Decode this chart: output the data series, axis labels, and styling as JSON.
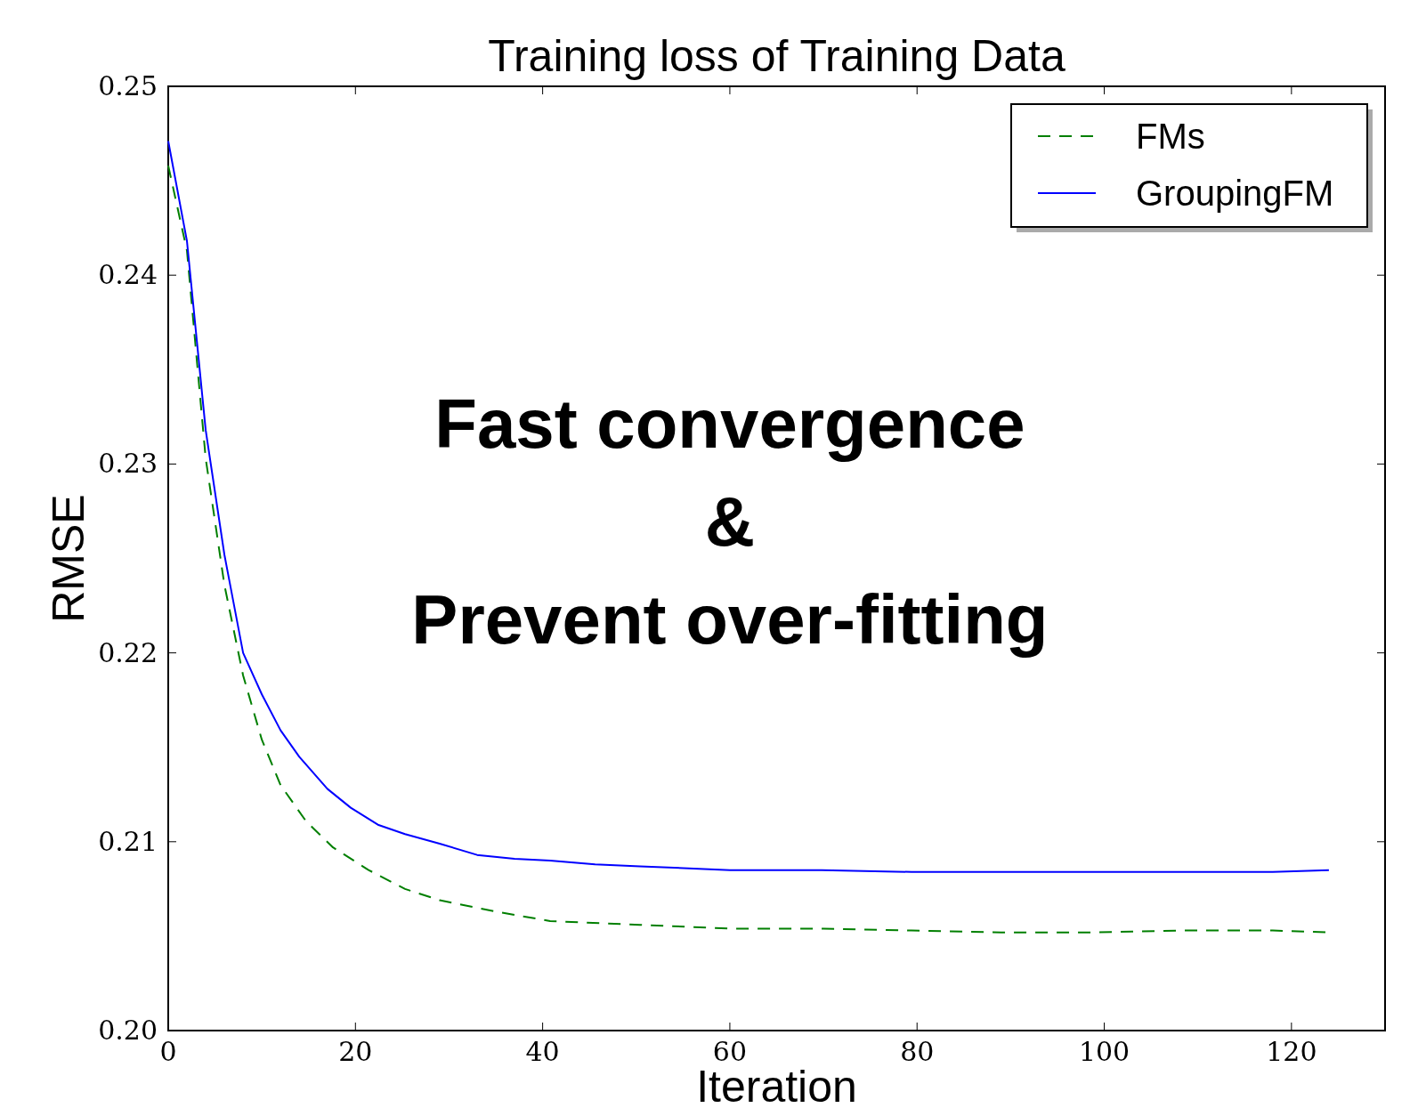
{
  "chart_data": {
    "type": "line",
    "title": "Training loss of Training Data",
    "xlabel": "Iteration",
    "ylabel": "RMSE",
    "xlim": [
      0,
      130
    ],
    "xticks": [
      0,
      20,
      40,
      60,
      80,
      100,
      120
    ],
    "ylim": [
      0.2,
      0.25
    ],
    "yticks": [
      {
        "value": 0.2,
        "label": "0.20"
      },
      0.21,
      0.22,
      0.23,
      0.24,
      {
        "value": 0.25,
        "label": "0.25"
      }
    ],
    "legend": "top right",
    "grid": false,
    "annotations": [
      "Fast convergence",
      "&",
      "Prevent over-fitting"
    ],
    "series": [
      {
        "name": "FMs",
        "color": "#007f00",
        "line_style": "dashed",
        "x": [
          0,
          2,
          4,
          6,
          8,
          10,
          12,
          14.7,
          17.6,
          21.4,
          25.3,
          29,
          35,
          40.8,
          50.4,
          60,
          70,
          79.4,
          89,
          98.7,
          108.4,
          118,
          124
        ],
        "values": [
          0.2458,
          0.2413,
          0.2303,
          0.2236,
          0.2188,
          0.2154,
          0.213,
          0.2111,
          0.2097,
          0.2085,
          0.2075,
          0.2069,
          0.2063,
          0.2058,
          0.2056,
          0.2054,
          0.2054,
          0.2053,
          0.2052,
          0.2052,
          0.2053,
          0.2053,
          0.2052
        ]
      },
      {
        "name": "GroupingFM",
        "color": "#0000ff",
        "line_style": "solid",
        "x": [
          0,
          2,
          4,
          6,
          8,
          10,
          12,
          14,
          17,
          19.5,
          22.4,
          25.3,
          29,
          33,
          37,
          40.8,
          45.6,
          50.4,
          60,
          69.8,
          79.4,
          89,
          98.7,
          108.4,
          118,
          124
        ],
        "values": [
          0.2471,
          0.2418,
          0.2318,
          0.2252,
          0.22,
          0.2178,
          0.2159,
          0.2145,
          0.2128,
          0.2118,
          0.2109,
          0.2104,
          0.2099,
          0.2093,
          0.2091,
          0.209,
          0.2088,
          0.2087,
          0.2085,
          0.2085,
          0.2084,
          0.2084,
          0.2084,
          0.2084,
          0.2084,
          0.2085
        ]
      }
    ]
  }
}
